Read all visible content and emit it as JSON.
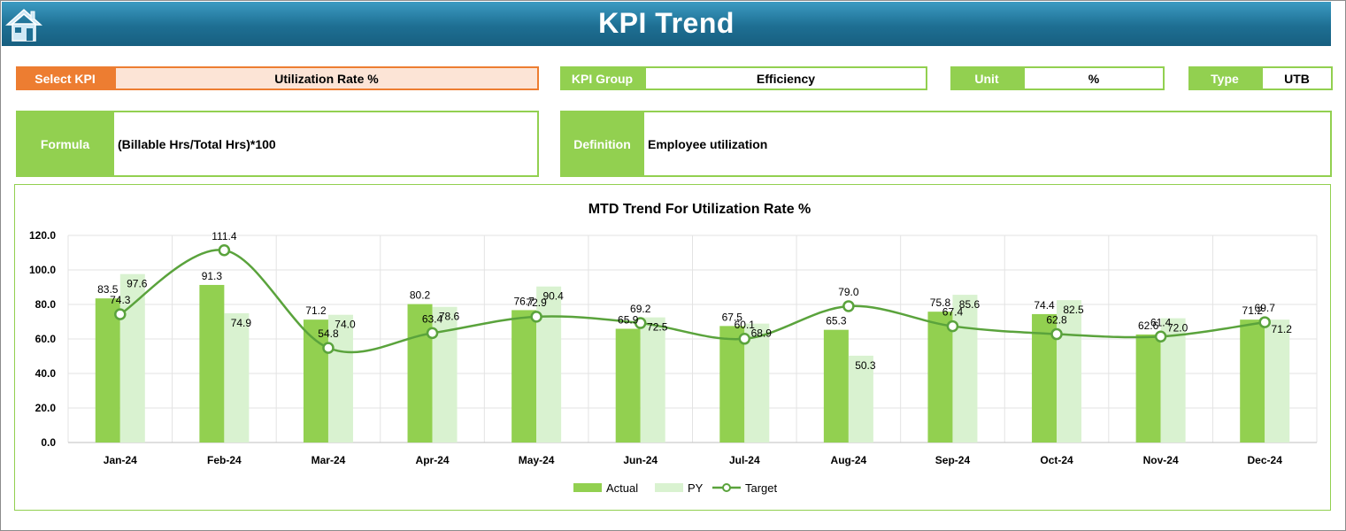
{
  "header": {
    "title": "KPI Trend",
    "home_icon": "home-icon"
  },
  "fields": {
    "select_kpi": {
      "label": "Select KPI",
      "value": "Utilization Rate %"
    },
    "kpi_group": {
      "label": "KPI Group",
      "value": "Efficiency"
    },
    "unit": {
      "label": "Unit",
      "value": "%"
    },
    "type": {
      "label": "Type",
      "value": "UTB"
    },
    "formula": {
      "label": "Formula",
      "value": "(Billable Hrs/Total Hrs)*100"
    },
    "definition": {
      "label": "Definition",
      "value": "Employee utilization"
    }
  },
  "colors": {
    "accent_green": "#92d050",
    "select_orange": "#ed7d31",
    "header_blue": "#1e6f93",
    "actual": "#92d050",
    "py": "#d9f2d0",
    "target": "#5aa33c"
  },
  "chart_data": {
    "type": "bar",
    "title": "MTD Trend For Utilization Rate %",
    "categories": [
      "Jan-24",
      "Feb-24",
      "Mar-24",
      "Apr-24",
      "May-24",
      "Jun-24",
      "Jul-24",
      "Aug-24",
      "Sep-24",
      "Oct-24",
      "Nov-24",
      "Dec-24"
    ],
    "series": [
      {
        "name": "Actual",
        "kind": "bar",
        "values": [
          83.5,
          91.3,
          71.2,
          80.2,
          76.7,
          65.9,
          67.5,
          65.3,
          75.8,
          74.4,
          62.6,
          71.2
        ]
      },
      {
        "name": "PY",
        "kind": "bar",
        "values": [
          97.6,
          74.9,
          74.0,
          78.6,
          90.4,
          72.5,
          68.9,
          50.3,
          85.6,
          82.5,
          72.0,
          71.2
        ]
      },
      {
        "name": "Target",
        "kind": "line",
        "values": [
          74.3,
          111.4,
          54.8,
          63.4,
          72.9,
          69.2,
          60.1,
          79.0,
          67.4,
          62.8,
          61.4,
          69.7
        ]
      }
    ],
    "ylim": [
      0,
      120
    ],
    "yticks": [
      "0.0",
      "20.0",
      "40.0",
      "60.0",
      "80.0",
      "100.0",
      "120.0"
    ],
    "grid": true,
    "legend": "bottom"
  }
}
